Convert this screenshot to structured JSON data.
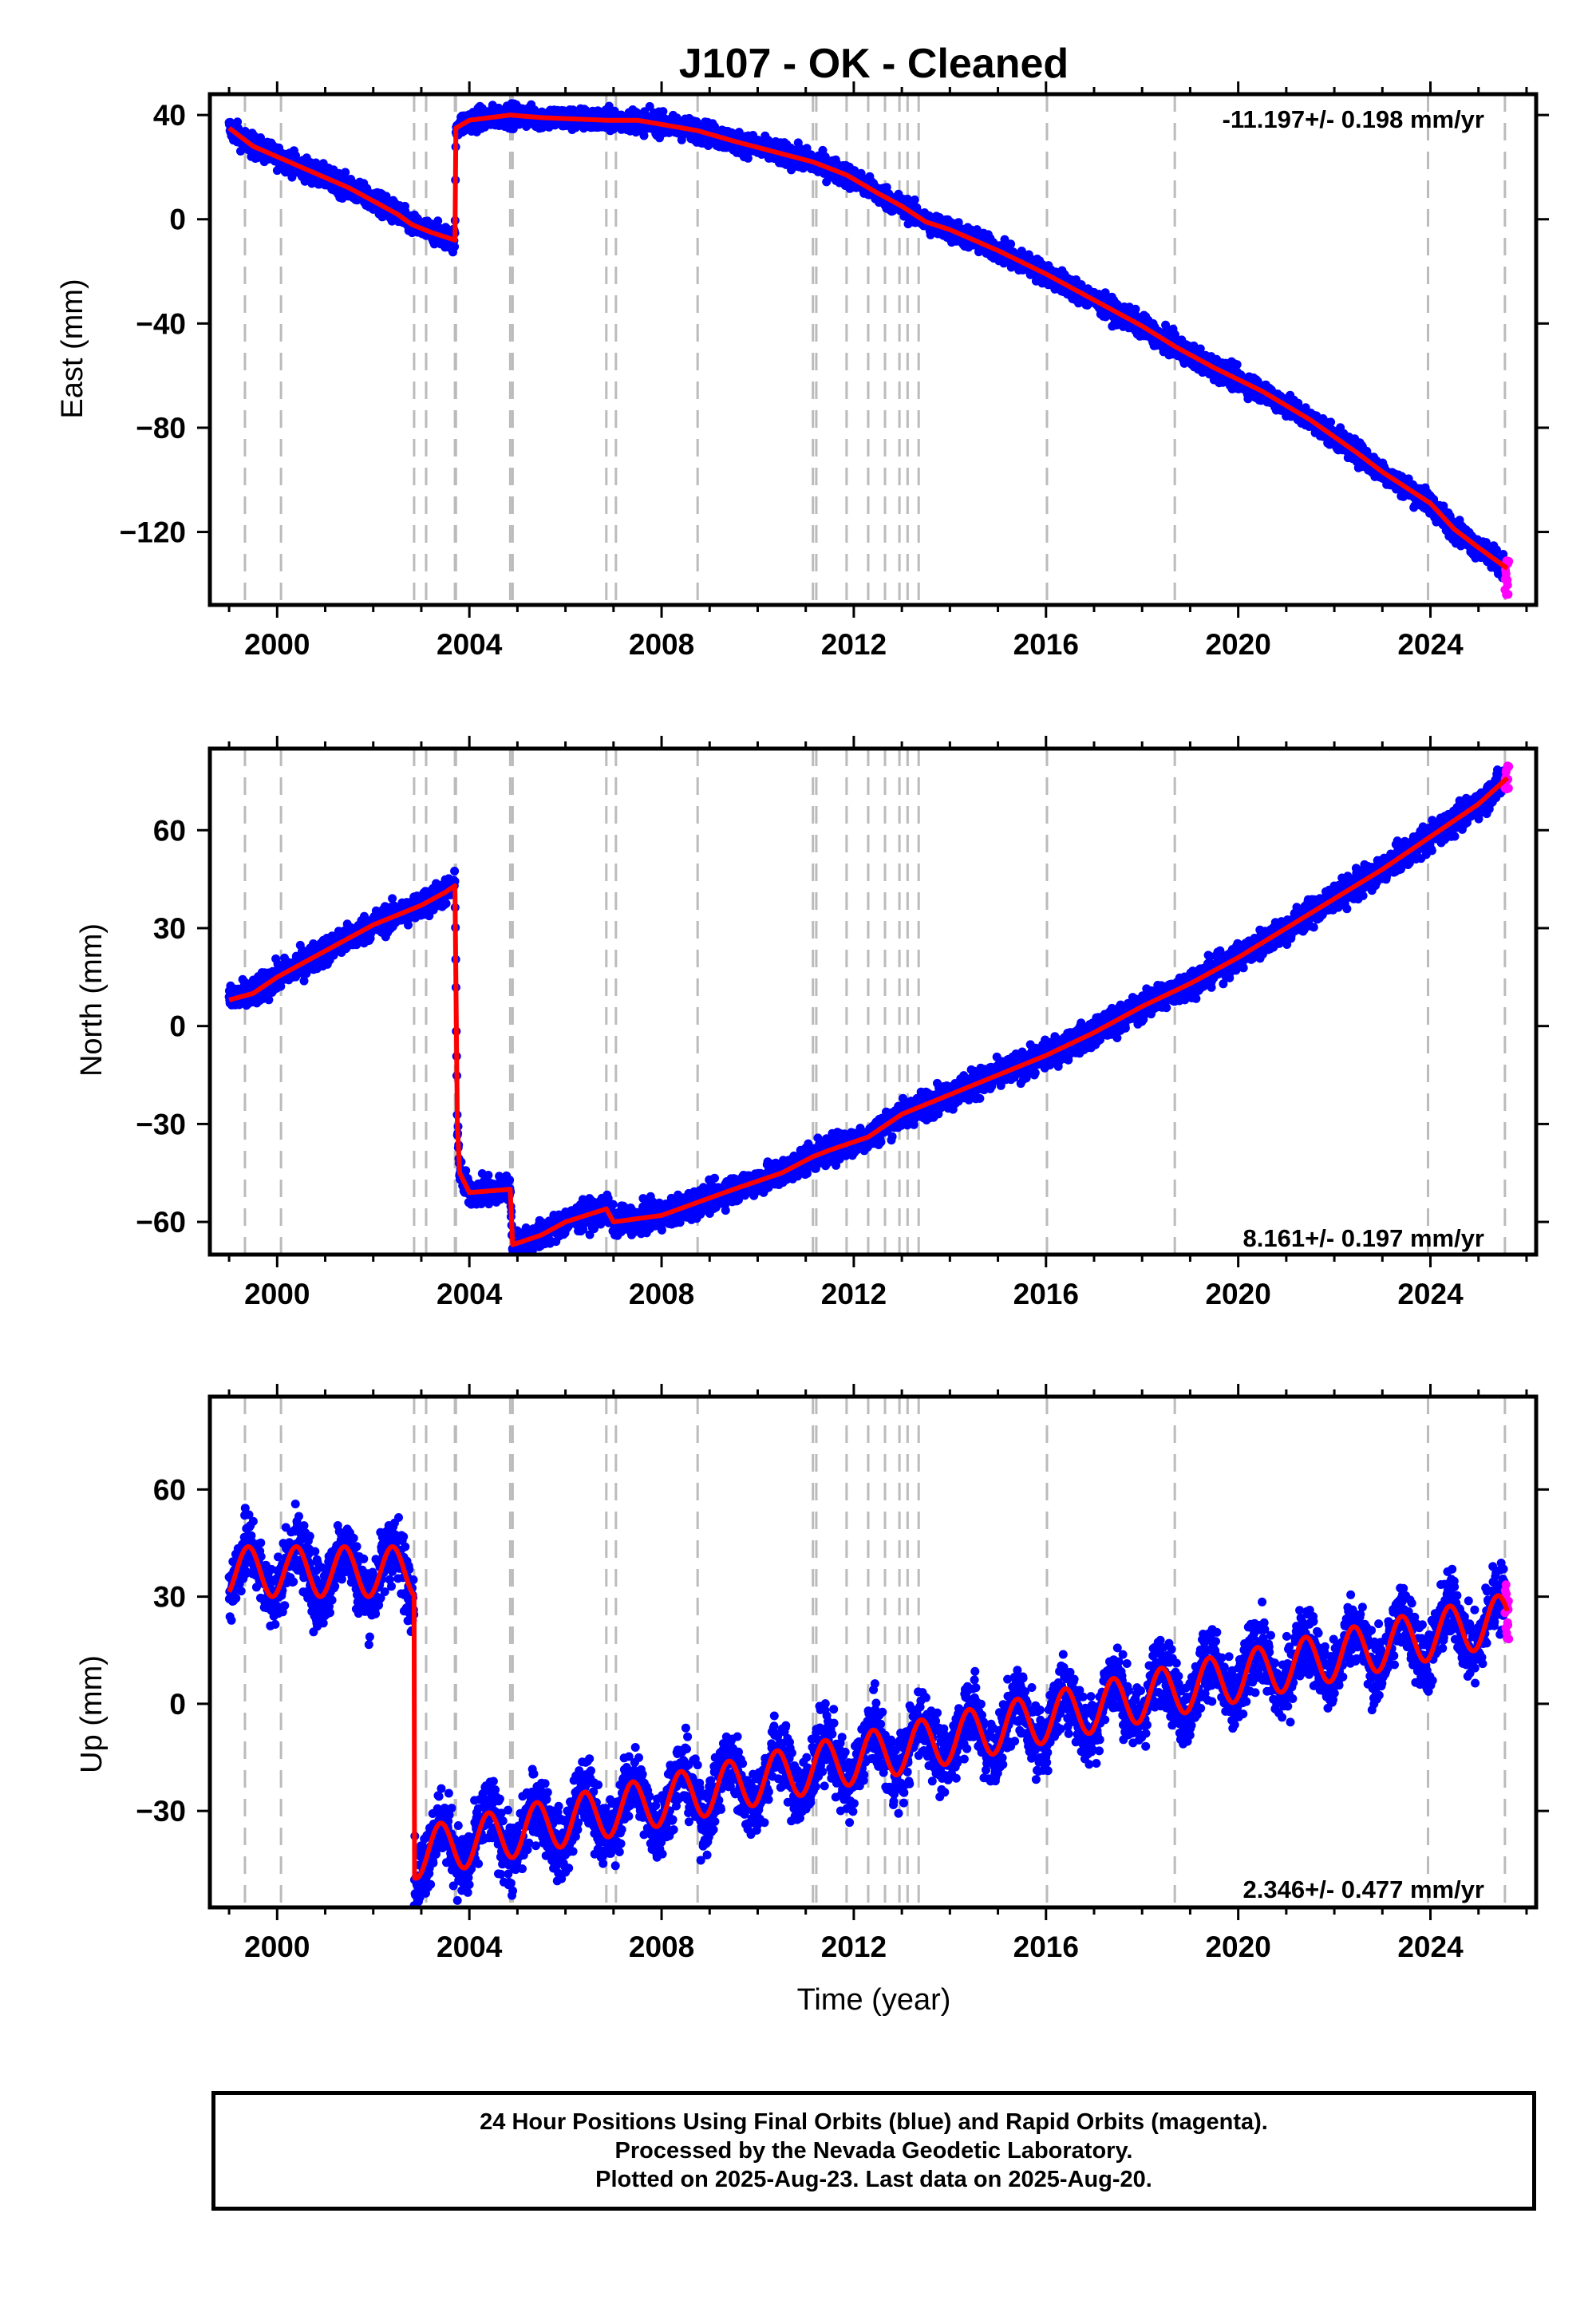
{
  "title": "J107  - OK - Cleaned",
  "colors": {
    "final": "#0000ff",
    "rapid": "#ff00ff",
    "model": "#ff0000",
    "event_line": "#bbbbbb"
  },
  "events": [
    1999.33,
    2000.08,
    2002.85,
    2003.1,
    2003.7,
    2003.72,
    2004.85,
    2004.9,
    2006.85,
    2007.05,
    2008.75,
    2011.15,
    2011.22,
    2011.85,
    2012.3,
    2012.65,
    2012.95,
    2013.12,
    2013.35,
    2016.02,
    2018.68,
    2023.95,
    2025.55
  ],
  "chart_data": [
    {
      "type": "scatter",
      "component": "East",
      "ylabel": "East (mm)",
      "xlabel": "",
      "rate": "-11.197+/- 0.198 mm/yr",
      "rate_position": "top-right",
      "xlim": [
        1998.6,
        2026.2
      ],
      "ylim": [
        -148,
        48
      ],
      "xticks": [
        "2000",
        "2004",
        "2008",
        "2012",
        "2016",
        "2020",
        "2024"
      ],
      "yticks": [
        "40",
        "0",
        "−40",
        "−80",
        "−120"
      ],
      "model_curve": {
        "x": [
          1999.0,
          1999.5,
          2000.0,
          2000.5,
          2001.0,
          2001.5,
          2002.0,
          2002.5,
          2002.8,
          2003.2,
          2003.7,
          2003.72,
          2004.0,
          2004.85,
          2005.5,
          2006.85,
          2007.5,
          2008.75,
          2009.5,
          2011.15,
          2011.85,
          2012.5,
          2013.0,
          2013.5,
          2014.0,
          2015.0,
          2016.0,
          2017.0,
          2018.0,
          2018.7,
          2019.5,
          2020.5,
          2021.5,
          2022.5,
          2023.0,
          2024.0,
          2024.5,
          2025.0,
          2025.6
        ],
        "y": [
          35,
          28,
          24,
          20,
          16,
          12,
          7,
          2,
          -2,
          -5,
          -8,
          35,
          38,
          40,
          39,
          38,
          38,
          34,
          30,
          22,
          17,
          10,
          5,
          -1,
          -4,
          -12,
          -21,
          -31,
          -41,
          -49,
          -57,
          -66,
          -77,
          -90,
          -97,
          -109,
          -119,
          -126,
          -134
        ]
      },
      "scatter_spread": 3,
      "rapid_points": {
        "x_from": 2025.55,
        "x_to": 2025.63,
        "y_min": -145,
        "y_max": -128
      }
    },
    {
      "type": "scatter",
      "component": "North",
      "ylabel": "North (mm)",
      "xlabel": "",
      "rate": "8.161+/- 0.197 mm/yr",
      "rate_position": "bottom-right",
      "xlim": [
        1998.6,
        2026.2
      ],
      "ylim": [
        -70,
        85
      ],
      "xticks": [
        "2000",
        "2004",
        "2008",
        "2012",
        "2016",
        "2020",
        "2024"
      ],
      "yticks": [
        "60",
        "30",
        "0",
        "−30",
        "−60"
      ],
      "model_curve": {
        "x": [
          1999.0,
          1999.5,
          2000.0,
          2000.5,
          2001.0,
          2001.5,
          2002.0,
          2002.5,
          2003.0,
          2003.5,
          2003.7,
          2003.75,
          2003.8,
          2004.0,
          2004.85,
          2004.9,
          2005.5,
          2006.0,
          2006.85,
          2007.0,
          2008.0,
          2008.75,
          2009.5,
          2010.5,
          2011.15,
          2011.5,
          2012.3,
          2013.0,
          2014.0,
          2015.0,
          2016.0,
          2017.0,
          2018.0,
          2019.0,
          2020.0,
          2021.0,
          2022.0,
          2023.0,
          2024.0,
          2025.0,
          2025.6
        ],
        "y": [
          8,
          10,
          15,
          19,
          23,
          27,
          31,
          34,
          37,
          41,
          43,
          -30,
          -45,
          -51,
          -50,
          -67,
          -64,
          -60,
          -56,
          -60,
          -58,
          -54,
          -50,
          -45,
          -40,
          -38,
          -34,
          -27,
          -21,
          -15,
          -9,
          -2,
          6,
          13,
          21,
          30,
          39,
          48,
          58,
          68,
          76
        ]
      },
      "scatter_spread": 3,
      "rapid_points": {
        "x_from": 2025.55,
        "x_to": 2025.63,
        "y_min": 72,
        "y_max": 80
      }
    },
    {
      "type": "scatter",
      "component": "Up",
      "ylabel": "Up (mm)",
      "xlabel": "Time (year)",
      "rate": "2.346+/- 0.477 mm/yr",
      "rate_position": "bottom-right",
      "xlim": [
        1998.6,
        2026.2
      ],
      "ylim": [
        -57,
        86
      ],
      "xticks": [
        "2000",
        "2004",
        "2008",
        "2012",
        "2016",
        "2020",
        "2024"
      ],
      "yticks": [
        "60",
        "30",
        "0",
        "−30"
      ],
      "seasonal_amplitude": 7,
      "model_segments": [
        {
          "x": [
            1999.0,
            2002.85
          ],
          "y": [
            37,
            37
          ]
        },
        {
          "x": [
            2002.85,
            2026.0
          ],
          "y": [
            -42,
            25
          ]
        }
      ],
      "scatter_spread": 7,
      "rapid_points": {
        "x_from": 2025.55,
        "x_to": 2025.63,
        "y_min": 18,
        "y_max": 34
      }
    }
  ],
  "footer": {
    "line1": "24 Hour Positions Using Final Orbits (blue) and Rapid Orbits (magenta).",
    "line2": "Processed by the Nevada Geodetic Laboratory.",
    "line3": "Plotted on 2025-Aug-23. Last data on 2025-Aug-20."
  }
}
